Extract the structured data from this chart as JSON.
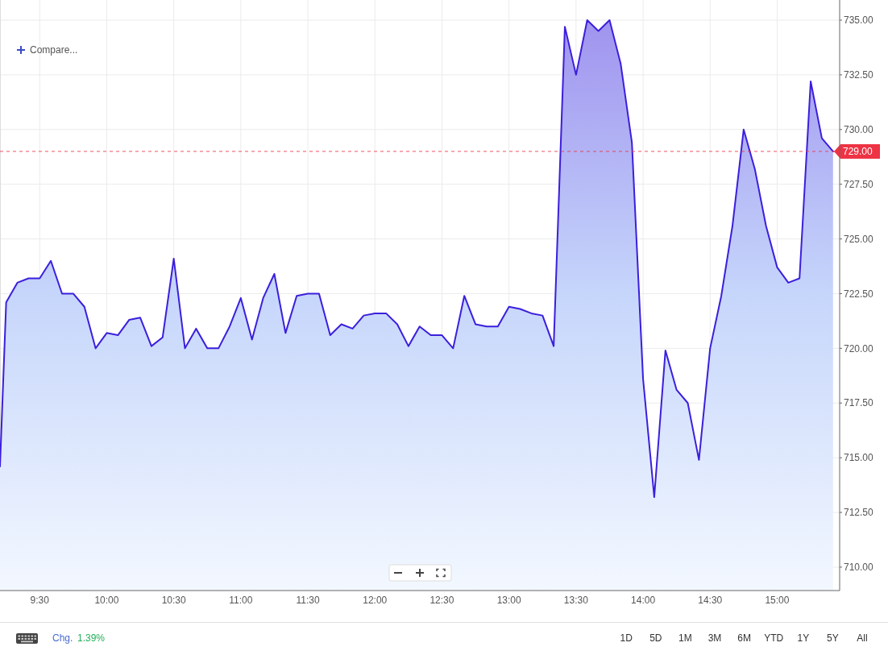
{
  "chart_data": {
    "type": "area",
    "color": "#3b1fdc",
    "x": [
      9.204,
      9.25,
      9.3333,
      9.4167,
      9.5,
      9.5833,
      9.6667,
      9.75,
      9.8333,
      9.9167,
      10,
      10.0833,
      10.1667,
      10.25,
      10.3333,
      10.4167,
      10.5,
      10.5833,
      10.6667,
      10.75,
      10.8333,
      10.9167,
      11,
      11.0833,
      11.1667,
      11.25,
      11.3333,
      11.4167,
      11.5,
      11.5833,
      11.6667,
      11.75,
      11.8333,
      11.9167,
      12,
      12.0833,
      12.1667,
      12.25,
      12.3333,
      12.4167,
      12.5,
      12.5833,
      12.6667,
      12.75,
      12.8333,
      12.9167,
      13,
      13.0833,
      13.1667,
      13.25,
      13.3333,
      13.4167,
      13.5,
      13.5833,
      13.6667,
      13.75,
      13.8333,
      13.9167,
      14,
      14.0833,
      14.1667,
      14.25,
      14.3333,
      14.4167,
      14.5,
      14.5833,
      14.6667,
      14.75,
      14.8333,
      14.9167,
      15,
      15.0833,
      15.1667,
      15.25,
      15.3333,
      15.4167
    ],
    "values": [
      714.6,
      722.1,
      723.0,
      723.2,
      723.2,
      724.0,
      722.5,
      722.5,
      721.9,
      720.0,
      720.7,
      720.6,
      721.3,
      721.4,
      720.1,
      720.5,
      724.1,
      720.0,
      720.9,
      720.0,
      720.0,
      721.0,
      722.3,
      720.4,
      722.3,
      723.4,
      720.7,
      722.4,
      722.5,
      722.5,
      720.6,
      721.1,
      720.9,
      721.5,
      721.6,
      721.6,
      721.1,
      720.1,
      721.0,
      720.6,
      720.6,
      720.0,
      722.4,
      721.1,
      721.0,
      721.0,
      721.9,
      721.8,
      721.6,
      721.5,
      720.1,
      734.7,
      732.5,
      735.0,
      734.5,
      735.0,
      733.0,
      729.4,
      718.6,
      713.2,
      719.9,
      718.1,
      717.5,
      714.9,
      720.0,
      722.4,
      725.6,
      730.0,
      728.2,
      725.6,
      723.7,
      723.0,
      723.2,
      732.2,
      729.6,
      729.0
    ],
    "xlim": [
      9.204,
      15.466
    ],
    "xticks": [
      {
        "value": 9.5,
        "label": "9:30"
      },
      {
        "value": 10,
        "label": "10:00"
      },
      {
        "value": 10.5,
        "label": "10:30"
      },
      {
        "value": 11,
        "label": "11:00"
      },
      {
        "value": 11.5,
        "label": "11:30"
      },
      {
        "value": 12,
        "label": "12:00"
      },
      {
        "value": 12.5,
        "label": "12:30"
      },
      {
        "value": 13,
        "label": "13:00"
      },
      {
        "value": 13.5,
        "label": "13:30"
      },
      {
        "value": 14,
        "label": "14:00"
      },
      {
        "value": 14.5,
        "label": "14:30"
      },
      {
        "value": 15,
        "label": "15:00"
      }
    ],
    "ylim": [
      708.93,
      735.92
    ],
    "yticks": [
      {
        "value": 710,
        "label": "710.00"
      },
      {
        "value": 712.5,
        "label": "712.50"
      },
      {
        "value": 715,
        "label": "715.00"
      },
      {
        "value": 717.5,
        "label": "717.50"
      },
      {
        "value": 720,
        "label": "720.00"
      },
      {
        "value": 722.5,
        "label": "722.50"
      },
      {
        "value": 725,
        "label": "725.00"
      },
      {
        "value": 727.5,
        "label": "727.50"
      },
      {
        "value": 730,
        "label": "730.00"
      },
      {
        "value": 732.5,
        "label": "732.50"
      },
      {
        "value": 735,
        "label": "735.00"
      }
    ],
    "grid": true,
    "ref_lines": [
      {
        "axis": "y",
        "value": 729,
        "label": "729.00",
        "color": "#ee3344",
        "line_style": "dashed"
      }
    ],
    "annotations": [
      "Compare...",
      "Chg.",
      "1.39%",
      "1D",
      "5D",
      "1M",
      "3M",
      "6M",
      "YTD",
      "1Y",
      "5Y",
      "All"
    ]
  }
}
